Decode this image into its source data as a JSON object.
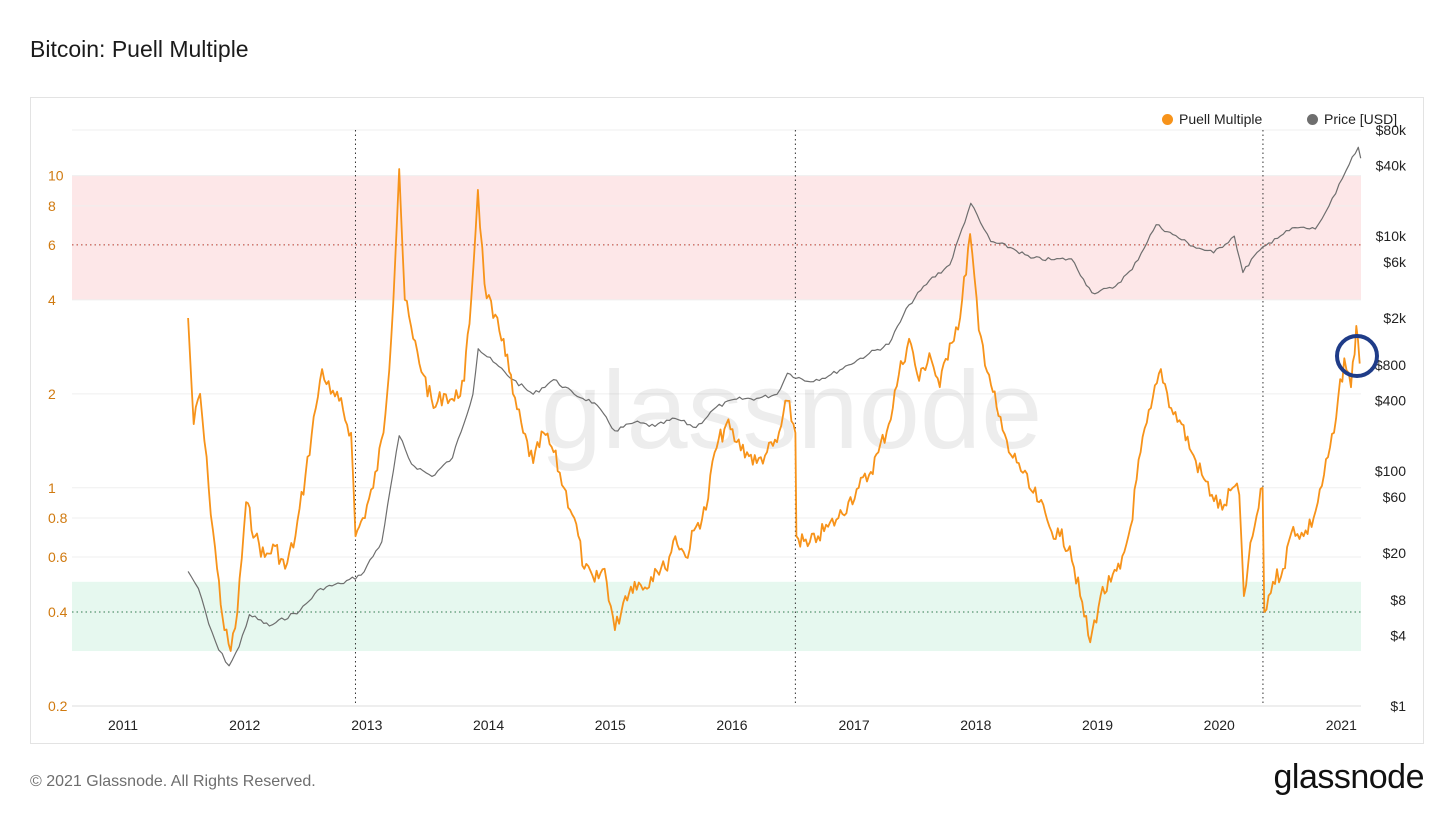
{
  "header": {
    "title": "Bitcoin: Puell Multiple"
  },
  "footer": {
    "copyright": "© 2021 Glassnode. All Rights Reserved.",
    "logo": "glassnode"
  },
  "watermark": "glassnode",
  "colors": {
    "puell": "#f7931a",
    "price": "#6e6e6e",
    "left_axis": "#d07a10",
    "right_axis": "#222222",
    "upper_band": "#fde7e8",
    "lower_band": "#e6f8ef",
    "highlight_circle": "#1f3c88"
  },
  "chart_data": {
    "type": "line",
    "title": "Bitcoin: Puell Multiple",
    "x_ticks": [
      "2011",
      "2012",
      "2013",
      "2014",
      "2015",
      "2016",
      "2017",
      "2018",
      "2019",
      "2020",
      "2021"
    ],
    "xlim": [
      "2010-08-01",
      "2021-03-01"
    ],
    "y_left": {
      "scale": "log",
      "ylim": [
        0.2,
        14
      ],
      "ticks": [
        0.2,
        0.4,
        0.6,
        0.8,
        1,
        2,
        4,
        6,
        8,
        10
      ]
    },
    "y_right": {
      "scale": "log",
      "ylim": [
        1,
        80000
      ],
      "ticks": [
        1,
        4,
        8,
        20,
        60,
        100,
        400,
        800,
        2000,
        6000,
        10000,
        40000,
        80000
      ],
      "tick_labels": [
        "$1",
        "$4",
        "$8",
        "$20",
        "$60",
        "$100",
        "$400",
        "$800",
        "$2k",
        "$6k",
        "$10k",
        "$40k",
        "$80k"
      ]
    },
    "bands": [
      {
        "zone": "upper",
        "from": 4,
        "to": 10
      },
      {
        "zone": "lower",
        "from": 0.3,
        "to": 0.5
      }
    ],
    "reference_lines": [
      6,
      0.4
    ],
    "halving_dates": [
      "2012-11-28",
      "2016-07-09",
      "2020-05-11"
    ],
    "legend": {
      "placement": "top-right"
    },
    "series": [
      {
        "name": "Puell Multiple",
        "axis": "left",
        "points": [
          [
            "2011-07-15",
            3.5
          ],
          [
            "2011-08-01",
            1.6
          ],
          [
            "2011-08-20",
            2.0
          ],
          [
            "2011-09-15",
            1.0
          ],
          [
            "2011-10-10",
            0.55
          ],
          [
            "2011-11-01",
            0.35
          ],
          [
            "2011-11-20",
            0.3
          ],
          [
            "2011-12-10",
            0.4
          ],
          [
            "2012-01-05",
            0.9
          ],
          [
            "2012-02-01",
            0.7
          ],
          [
            "2012-03-01",
            0.6
          ],
          [
            "2012-04-01",
            0.65
          ],
          [
            "2012-05-01",
            0.55
          ],
          [
            "2012-06-01",
            0.7
          ],
          [
            "2012-07-01",
            1.1
          ],
          [
            "2012-08-01",
            1.8
          ],
          [
            "2012-08-20",
            2.4
          ],
          [
            "2012-09-15",
            2.0
          ],
          [
            "2012-10-10",
            1.9
          ],
          [
            "2012-11-15",
            1.5
          ],
          [
            "2012-11-28",
            0.7
          ],
          [
            "2012-12-20",
            0.8
          ],
          [
            "2013-01-20",
            1.0
          ],
          [
            "2013-02-20",
            1.5
          ],
          [
            "2013-03-15",
            3.0
          ],
          [
            "2013-04-08",
            10.5
          ],
          [
            "2013-04-25",
            4.0
          ],
          [
            "2013-05-20",
            3.0
          ],
          [
            "2013-06-20",
            2.3
          ],
          [
            "2013-07-20",
            1.8
          ],
          [
            "2013-08-20",
            2.0
          ],
          [
            "2013-09-20",
            1.9
          ],
          [
            "2013-10-20",
            2.2
          ],
          [
            "2013-11-10",
            4.0
          ],
          [
            "2013-11-30",
            9.0
          ],
          [
            "2013-12-20",
            4.5
          ],
          [
            "2014-01-15",
            3.5
          ],
          [
            "2014-02-15",
            3.0
          ],
          [
            "2014-03-15",
            2.0
          ],
          [
            "2014-04-15",
            1.5
          ],
          [
            "2014-05-15",
            1.2
          ],
          [
            "2014-06-15",
            1.5
          ],
          [
            "2014-07-15",
            1.3
          ],
          [
            "2014-08-15",
            1.0
          ],
          [
            "2014-09-15",
            0.8
          ],
          [
            "2014-10-15",
            0.55
          ],
          [
            "2014-11-15",
            0.5
          ],
          [
            "2014-12-15",
            0.55
          ],
          [
            "2015-01-15",
            0.35
          ],
          [
            "2015-02-15",
            0.45
          ],
          [
            "2015-03-15",
            0.5
          ],
          [
            "2015-04-15",
            0.48
          ],
          [
            "2015-05-15",
            0.55
          ],
          [
            "2015-06-15",
            0.55
          ],
          [
            "2015-07-15",
            0.7
          ],
          [
            "2015-08-15",
            0.6
          ],
          [
            "2015-09-15",
            0.75
          ],
          [
            "2015-10-15",
            0.85
          ],
          [
            "2015-11-10",
            1.3
          ],
          [
            "2015-12-15",
            1.6
          ],
          [
            "2016-01-15",
            1.4
          ],
          [
            "2016-02-15",
            1.3
          ],
          [
            "2016-03-15",
            1.2
          ],
          [
            "2016-04-15",
            1.3
          ],
          [
            "2016-05-15",
            1.4
          ],
          [
            "2016-06-15",
            1.9
          ],
          [
            "2016-07-09",
            1.5
          ],
          [
            "2016-07-12",
            0.7
          ],
          [
            "2016-08-15",
            0.65
          ],
          [
            "2016-09-15",
            0.7
          ],
          [
            "2016-10-15",
            0.75
          ],
          [
            "2016-11-15",
            0.8
          ],
          [
            "2016-12-15",
            0.9
          ],
          [
            "2017-01-15",
            1.0
          ],
          [
            "2017-02-15",
            1.1
          ],
          [
            "2017-03-15",
            1.3
          ],
          [
            "2017-04-15",
            1.6
          ],
          [
            "2017-05-15",
            2.3
          ],
          [
            "2017-06-15",
            3.0
          ],
          [
            "2017-07-15",
            2.2
          ],
          [
            "2017-08-15",
            2.7
          ],
          [
            "2017-09-15",
            2.1
          ],
          [
            "2017-10-15",
            2.9
          ],
          [
            "2017-11-15",
            3.5
          ],
          [
            "2017-12-15",
            6.5
          ],
          [
            "2018-01-10",
            3.2
          ],
          [
            "2018-02-10",
            2.3
          ],
          [
            "2018-03-10",
            1.7
          ],
          [
            "2018-04-10",
            1.3
          ],
          [
            "2018-05-10",
            1.2
          ],
          [
            "2018-06-10",
            1.0
          ],
          [
            "2018-07-10",
            0.9
          ],
          [
            "2018-08-10",
            0.75
          ],
          [
            "2018-09-10",
            0.7
          ],
          [
            "2018-10-10",
            0.65
          ],
          [
            "2018-11-10",
            0.45
          ],
          [
            "2018-12-10",
            0.32
          ],
          [
            "2019-01-10",
            0.45
          ],
          [
            "2019-02-10",
            0.5
          ],
          [
            "2019-03-10",
            0.55
          ],
          [
            "2019-04-10",
            0.75
          ],
          [
            "2019-05-10",
            1.3
          ],
          [
            "2019-06-10",
            1.8
          ],
          [
            "2019-07-10",
            2.4
          ],
          [
            "2019-08-10",
            1.8
          ],
          [
            "2019-09-10",
            1.6
          ],
          [
            "2019-10-10",
            1.3
          ],
          [
            "2019-11-10",
            1.1
          ],
          [
            "2019-12-10",
            0.95
          ],
          [
            "2020-01-10",
            0.85
          ],
          [
            "2020-02-10",
            1.0
          ],
          [
            "2020-03-01",
            0.95
          ],
          [
            "2020-03-15",
            0.45
          ],
          [
            "2020-04-10",
            0.7
          ],
          [
            "2020-05-10",
            1.0
          ],
          [
            "2020-05-15",
            0.4
          ],
          [
            "2020-06-10",
            0.5
          ],
          [
            "2020-07-10",
            0.55
          ],
          [
            "2020-08-10",
            0.75
          ],
          [
            "2020-09-10",
            0.7
          ],
          [
            "2020-10-10",
            0.8
          ],
          [
            "2020-11-10",
            1.1
          ],
          [
            "2020-12-10",
            1.5
          ],
          [
            "2021-01-10",
            2.6
          ],
          [
            "2021-01-30",
            2.1
          ],
          [
            "2021-02-15",
            3.3
          ],
          [
            "2021-02-25",
            2.5
          ]
        ]
      },
      {
        "name": "Price [USD]",
        "axis": "right",
        "points": [
          [
            "2011-07-15",
            14
          ],
          [
            "2011-08-15",
            10
          ],
          [
            "2011-09-15",
            5
          ],
          [
            "2011-10-15",
            3
          ],
          [
            "2011-11-15",
            2.2
          ],
          [
            "2011-12-15",
            3.2
          ],
          [
            "2012-01-15",
            6
          ],
          [
            "2012-03-15",
            4.8
          ],
          [
            "2012-06-15",
            6.5
          ],
          [
            "2012-08-15",
            10
          ],
          [
            "2012-10-15",
            11
          ],
          [
            "2012-12-15",
            13
          ],
          [
            "2013-02-15",
            25
          ],
          [
            "2013-04-08",
            200
          ],
          [
            "2013-05-15",
            115
          ],
          [
            "2013-07-15",
            90
          ],
          [
            "2013-09-15",
            130
          ],
          [
            "2013-11-15",
            450
          ],
          [
            "2013-12-01",
            1100
          ],
          [
            "2014-01-15",
            850
          ],
          [
            "2014-03-15",
            600
          ],
          [
            "2014-05-15",
            450
          ],
          [
            "2014-07-15",
            600
          ],
          [
            "2014-09-15",
            450
          ],
          [
            "2014-11-15",
            380
          ],
          [
            "2015-01-15",
            220
          ],
          [
            "2015-03-15",
            260
          ],
          [
            "2015-05-15",
            240
          ],
          [
            "2015-07-15",
            280
          ],
          [
            "2015-09-15",
            235
          ],
          [
            "2015-11-15",
            350
          ],
          [
            "2016-01-15",
            410
          ],
          [
            "2016-03-15",
            415
          ],
          [
            "2016-05-15",
            450
          ],
          [
            "2016-06-15",
            680
          ],
          [
            "2016-08-15",
            580
          ],
          [
            "2016-10-15",
            640
          ],
          [
            "2016-12-15",
            800
          ],
          [
            "2017-02-15",
            1000
          ],
          [
            "2017-04-15",
            1200
          ],
          [
            "2017-06-15",
            2600
          ],
          [
            "2017-08-15",
            4200
          ],
          [
            "2017-10-15",
            5700
          ],
          [
            "2017-12-17",
            19000
          ],
          [
            "2018-01-15",
            13000
          ],
          [
            "2018-02-15",
            9000
          ],
          [
            "2018-04-15",
            8000
          ],
          [
            "2018-06-15",
            6500
          ],
          [
            "2018-08-15",
            6300
          ],
          [
            "2018-10-15",
            6400
          ],
          [
            "2018-11-20",
            4300
          ],
          [
            "2018-12-15",
            3300
          ],
          [
            "2019-02-15",
            3600
          ],
          [
            "2019-04-15",
            5200
          ],
          [
            "2019-06-26",
            12500
          ],
          [
            "2019-08-15",
            10300
          ],
          [
            "2019-10-15",
            8200
          ],
          [
            "2019-12-15",
            7200
          ],
          [
            "2020-02-15",
            10000
          ],
          [
            "2020-03-12",
            4900
          ],
          [
            "2020-04-15",
            6800
          ],
          [
            "2020-06-15",
            9500
          ],
          [
            "2020-08-15",
            11800
          ],
          [
            "2020-10-15",
            11500
          ],
          [
            "2020-11-15",
            16000
          ],
          [
            "2020-12-15",
            23000
          ],
          [
            "2021-01-15",
            36000
          ],
          [
            "2021-02-21",
            57000
          ],
          [
            "2021-02-28",
            46000
          ]
        ]
      }
    ]
  }
}
